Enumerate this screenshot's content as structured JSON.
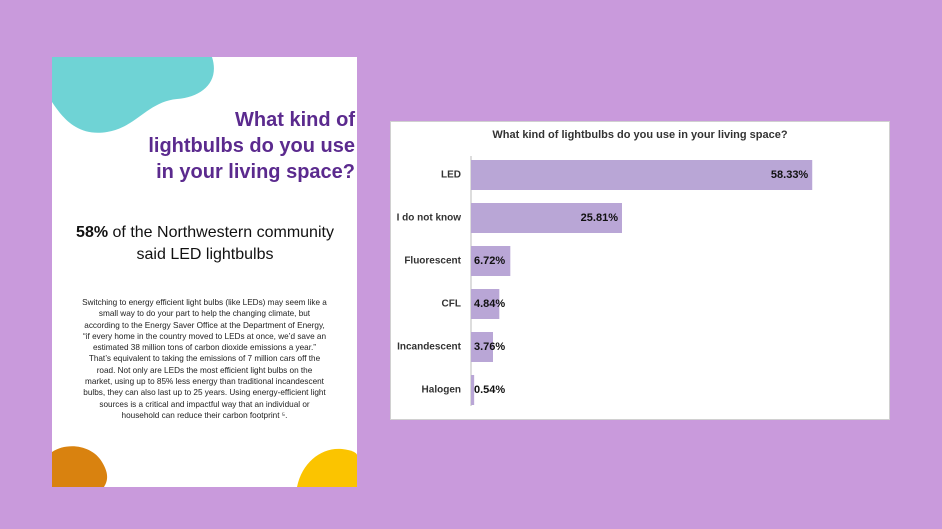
{
  "card": {
    "title": "What kind of lightbulbs do you use in your living space?",
    "headline": {
      "highlight": "58%",
      "text": "of the Northwestern community said LED lightbulbs"
    },
    "body": "Switching to energy efficient light bulbs (like LEDs) may seem like a small way to do your part to help the changing climate, but according to the Energy Saver Office at the Department of Energy, “if every home in the country moved to LEDs at once, we’d save an estimated 38 million tons of carbon dioxide emissions a year.” That’s equivalent to taking the emissions of 7 million cars off the road. Not only are LEDs the most efficient light bulbs on the market, using up to 85% less energy than traditional incandescent bulbs, they can also last up to 25 years. Using energy-efficient light sources is a critical and impactful way that an individual or household can reduce their carbon footprint ⁵."
  },
  "chart_data": {
    "type": "hbar",
    "title": "What kind of lightbulbs do you use in your living space?",
    "categories": [
      "LED",
      "I do not know",
      "Fluorescent",
      "CFL",
      "Incandescent",
      "Halogen"
    ],
    "values": [
      58.33,
      25.81,
      6.72,
      4.84,
      3.76,
      0.54
    ],
    "value_labels": [
      "58.33%",
      "25.81%",
      "6.72%",
      "4.84%",
      "3.76%",
      "0.54%"
    ],
    "color": "#b9a6d6"
  }
}
